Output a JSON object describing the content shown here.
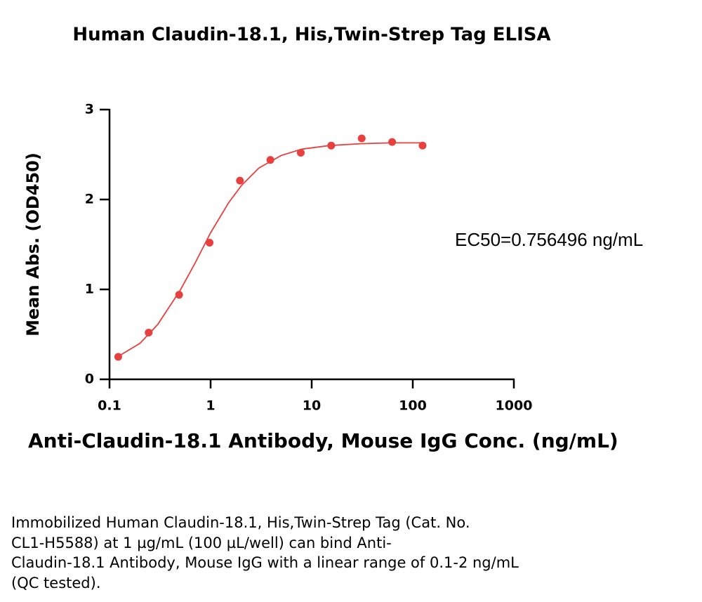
{
  "chart_data": {
    "type": "scatter",
    "title": "Human Claudin-18.1, His,Twin-Strep Tag ELISA",
    "x_label": "Anti-Claudin-18.1 Antibody, Mouse IgG Conc. (ng/mL)",
    "y_label": "Mean Abs. (OD450)",
    "annotation": "EC50=0.756496 ng/mL",
    "x": [
      0.122,
      0.244,
      0.488,
      0.977,
      1.95,
      3.9,
      7.8,
      15.6,
      31.25,
      62.5,
      125
    ],
    "values": [
      0.25,
      0.52,
      0.94,
      1.52,
      2.21,
      2.44,
      2.52,
      2.6,
      2.68,
      2.64,
      2.6
    ],
    "curve": {
      "x": [
        0.12,
        0.2,
        0.3,
        0.5,
        0.7,
        1,
        1.5,
        2,
        3,
        5,
        8,
        15,
        30,
        60,
        125
      ],
      "values": [
        0.25,
        0.4,
        0.61,
        0.99,
        1.29,
        1.63,
        1.96,
        2.15,
        2.35,
        2.49,
        2.56,
        2.6,
        2.62,
        2.63,
        2.63
      ]
    },
    "color": "#e8403f",
    "xscale": "log",
    "xlim": [
      0.1,
      1000
    ],
    "xticks": [
      0.1,
      1,
      10,
      100,
      1000
    ],
    "ylim": [
      0,
      3
    ],
    "yticks": [
      0,
      1,
      2,
      3
    ],
    "grid": false
  },
  "caption": [
    "Immobilized Human Claudin-18.1, His,Twin-Strep Tag (Cat. No.",
    "CL1-H5588) at 1 µg/mL (100 µL/well) can bind Anti-",
    "Claudin-18.1 Antibody, Mouse IgG with a linear range of 0.1-2 ng/mL",
    "(QC tested)."
  ]
}
